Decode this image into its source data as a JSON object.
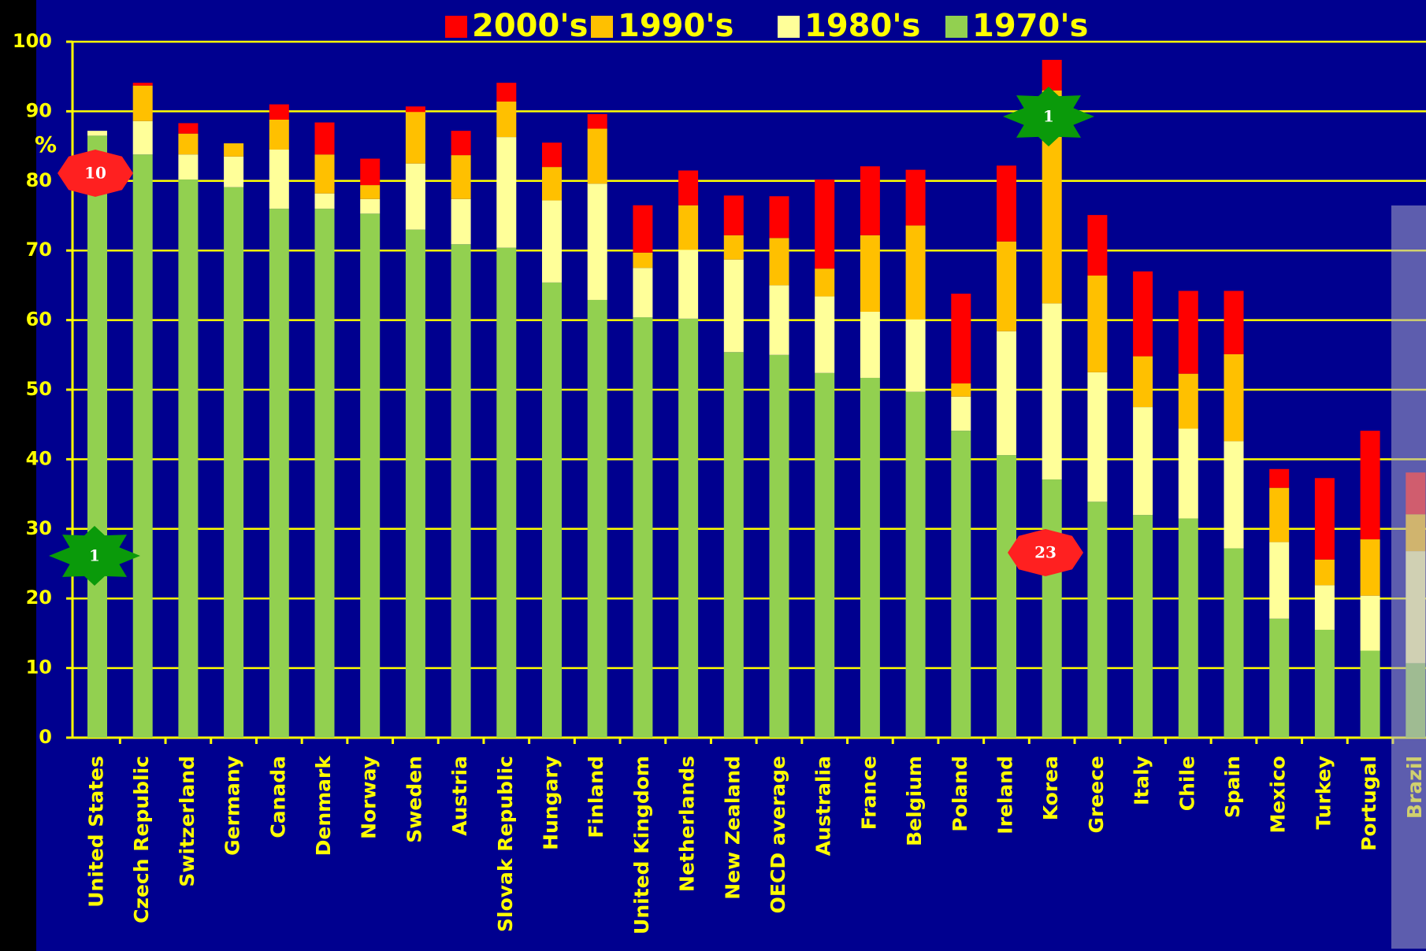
{
  "chart_data": {
    "type": "stacked_bar",
    "y_label": "%",
    "categories": [
      "United States",
      "Czech Republic",
      "Switzerland",
      "Germany",
      "Canada",
      "Denmark",
      "Norway",
      "Sweden",
      "Austria",
      "Slovak Republic",
      "Hungary",
      "Finland",
      "United Kingdom",
      "Netherlands",
      "New Zealand",
      "OECD average",
      "Australia",
      "France",
      "Belgium",
      "Poland",
      "Ireland",
      "Korea",
      "Greece",
      "Italy",
      "Chile",
      "Spain",
      "Mexico",
      "Turkey",
      "Portugal",
      "Brazil"
    ],
    "series": [
      {
        "name": "1970's",
        "color": "#92d050",
        "values": [
          86.5,
          83.8,
          80.2,
          79.1,
          76.0,
          76.0,
          75.3,
          73.0,
          70.9,
          70.4,
          65.4,
          62.9,
          60.4,
          60.2,
          55.4,
          55.0,
          52.4,
          51.7,
          49.7,
          44.1,
          40.6,
          37.1,
          33.9,
          32.0,
          31.5,
          27.2,
          17.1,
          15.5,
          12.5,
          10.7
        ]
      },
      {
        "name": "1980's",
        "color": "#ffff99",
        "values": [
          0.7,
          4.8,
          3.6,
          4.4,
          8.5,
          2.2,
          2.1,
          9.5,
          6.5,
          15.9,
          11.8,
          16.7,
          7.1,
          9.9,
          13.3,
          10.0,
          11.0,
          9.5,
          10.4,
          4.9,
          17.8,
          25.3,
          18.6,
          15.5,
          12.9,
          15.4,
          11.0,
          6.4,
          7.9,
          16.1
        ]
      },
      {
        "name": "1990's",
        "color": "#ffc000",
        "values": [
          0,
          5.1,
          3.0,
          1.9,
          4.3,
          5.6,
          2.0,
          7.4,
          6.3,
          5.1,
          4.8,
          7.9,
          2.2,
          6.4,
          3.5,
          6.8,
          4.0,
          11.0,
          13.5,
          1.9,
          12.9,
          30.6,
          13.9,
          7.3,
          7.9,
          12.5,
          7.8,
          3.7,
          8.1,
          5.3
        ]
      },
      {
        "name": "2000's",
        "color": "#ff0000",
        "values": [
          0,
          0.4,
          1.5,
          0,
          2.2,
          4.6,
          3.8,
          0.8,
          3.5,
          2.7,
          3.5,
          2.1,
          6.8,
          5.0,
          5.7,
          6.0,
          12.8,
          9.9,
          8.0,
          12.9,
          10.9,
          4.4,
          8.7,
          12.2,
          11.9,
          9.1,
          2.7,
          11.7,
          15.6,
          6.0
        ]
      }
    ],
    "ylim": [
      0,
      100
    ],
    "yticks": [
      0,
      10,
      20,
      30,
      40,
      50,
      60,
      70,
      80,
      90,
      100
    ],
    "grid": true,
    "annotations": [
      "10",
      "1",
      "1",
      "23"
    ]
  }
}
